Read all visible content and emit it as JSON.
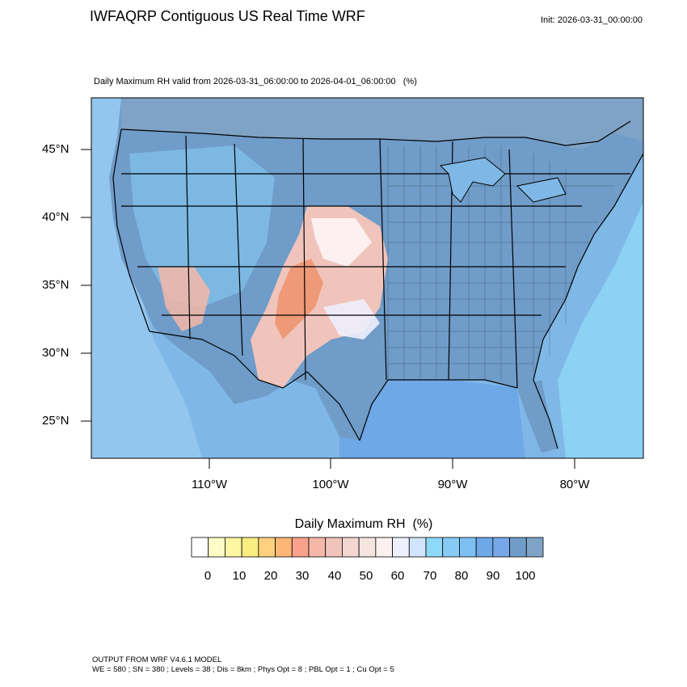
{
  "title": "IWFAQRP Contiguous US Real Time WRF",
  "init_label": "Init: 2026-03-31_00:00:00",
  "subtitle": "Daily Maximum RH valid from 2026-03-31_06:00:00 to 2026-04-01_06:00:00   (%)",
  "map": {
    "region": "Contiguous United States",
    "lat_labels": [
      "45°N",
      "40°N",
      "35°N",
      "30°N",
      "25°N"
    ],
    "lon_labels": [
      "110°W",
      "100°W",
      "90°W",
      "80°W"
    ],
    "field": "Daily Maximum RH",
    "colors": {
      "ocean": "#7fb8e6",
      "humid": "#6f9cc8",
      "moist": "#93c6ee",
      "dry": "#f4b7a8",
      "very_dry": "#ee9978",
      "border": "#000000"
    }
  },
  "colorbar": {
    "title": "Daily Maximum RH  (%)",
    "colors": [
      "#ffffff",
      "#fdfcc6",
      "#fdf7a3",
      "#faed7f",
      "#fed17e",
      "#fcb675",
      "#f8a18b",
      "#f4b7a8",
      "#f1c4bb",
      "#f2d6cf",
      "#f6e4df",
      "#fdf0f0",
      "#eef0fd",
      "#d0e4fb",
      "#8ed8f8",
      "#87cbf4",
      "#7ec0f5",
      "#6ea8e6",
      "#78a7e7",
      "#6f9cc8",
      "#7fa3c6"
    ],
    "ticks": [
      "0",
      "10",
      "20",
      "30",
      "40",
      "50",
      "60",
      "70",
      "80",
      "90",
      "100"
    ]
  },
  "footer": {
    "line1": "OUTPUT FROM WRF V4.6.1 MODEL",
    "line2": "WE = 580 ; SN = 380 ; Levels = 38 ; Dis = 8km ; Phys Opt = 8 ; PBL Opt = 1 ; Cu Opt = 5"
  }
}
